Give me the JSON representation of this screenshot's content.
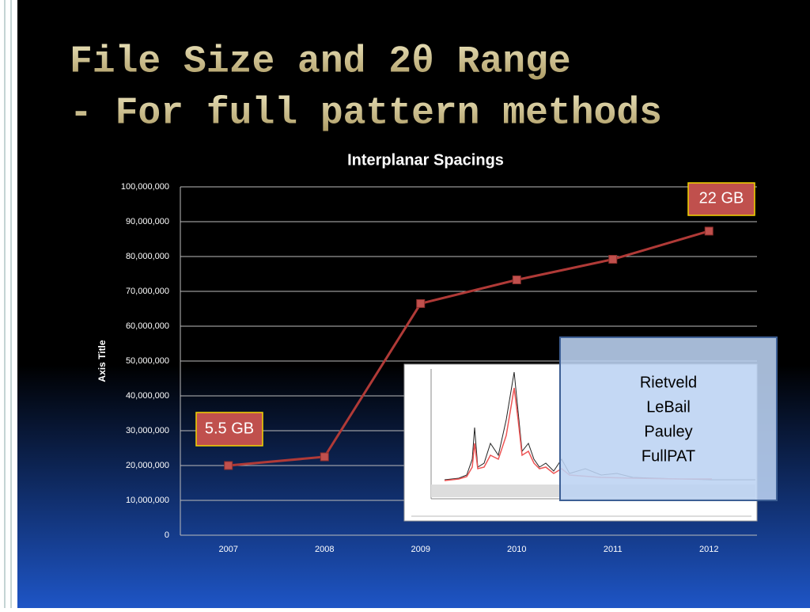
{
  "slide": {
    "title_lines": [
      "File Size and 2θ Range",
      "- For full pattern methods"
    ]
  },
  "chart_data": {
    "type": "line",
    "title": "Interplanar Spacings",
    "y_label": "Axis Title",
    "categories": [
      "2007",
      "2008",
      "2009",
      "2010",
      "2011",
      "2012"
    ],
    "values": [
      20000000,
      22500000,
      66500000,
      73300000,
      79200000,
      87300000
    ],
    "color": "#b03a37",
    "ylim": [
      0,
      100000000
    ],
    "yticks": [
      0,
      {
        "value": 10000000,
        "label": "10,000,000"
      },
      {
        "value": 20000000,
        "label": "20,000,000"
      },
      {
        "value": 30000000,
        "label": "30,000,000"
      },
      {
        "value": 40000000,
        "label": "40,000,000"
      },
      {
        "value": 50000000,
        "label": "50,000,000"
      },
      {
        "value": 60000000,
        "label": "60,000,000"
      },
      {
        "value": 70000000,
        "label": "70,000,000"
      },
      {
        "value": 80000000,
        "label": "80,000,000"
      },
      {
        "value": 90000000,
        "label": "90,000,000"
      },
      {
        "value": 100000000,
        "label": "100,000,000"
      }
    ],
    "grid": true,
    "annotations": [
      "5.5 GB",
      "22 GB"
    ]
  },
  "callout": {
    "lines": [
      "Rietveld",
      "LeBail",
      "Pauley",
      "FullPAT"
    ]
  }
}
